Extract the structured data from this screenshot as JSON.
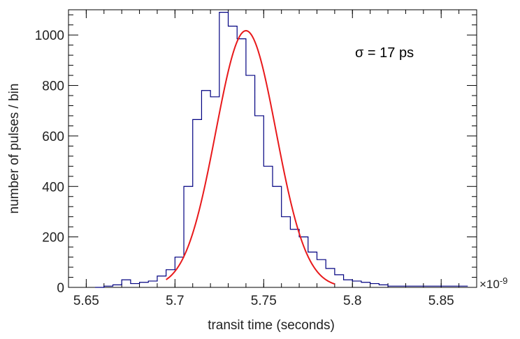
{
  "chart_data": {
    "type": "histogram",
    "title": "",
    "xlabel": "transit time (seconds)",
    "ylabel": "number of pulses / bin",
    "x_multiplier": "×10",
    "x_multiplier_exp": "-9",
    "xlim": [
      5.64,
      5.87
    ],
    "ylim": [
      0,
      1100
    ],
    "x_ticks": [
      "5.65",
      "5.7",
      "5.75",
      "5.8",
      "5.85"
    ],
    "x_tick_values": [
      5.65,
      5.7,
      5.75,
      5.8,
      5.85
    ],
    "y_ticks": [
      "0",
      "200",
      "400",
      "600",
      "800",
      "1000"
    ],
    "y_tick_values": [
      0,
      200,
      400,
      600,
      800,
      1000
    ],
    "annotation": "σ = 17 ps",
    "histogram": {
      "name": "data",
      "color": "#000080",
      "bin_edges": [
        5.655,
        5.66,
        5.665,
        5.67,
        5.675,
        5.68,
        5.685,
        5.69,
        5.695,
        5.7,
        5.705,
        5.71,
        5.715,
        5.72,
        5.725,
        5.73,
        5.735,
        5.74,
        5.745,
        5.75,
        5.755,
        5.76,
        5.765,
        5.77,
        5.775,
        5.78,
        5.785,
        5.79,
        5.795,
        5.8,
        5.805,
        5.81,
        5.815,
        5.82,
        5.825,
        5.83,
        5.835,
        5.84,
        5.845,
        5.85,
        5.855,
        5.86,
        5.865
      ],
      "counts": [
        0,
        5,
        10,
        30,
        15,
        20,
        25,
        45,
        70,
        120,
        400,
        665,
        780,
        755,
        1090,
        1035,
        985,
        840,
        680,
        480,
        400,
        280,
        230,
        200,
        140,
        110,
        75,
        50,
        30,
        25,
        20,
        15,
        10,
        5,
        5,
        5,
        5,
        5,
        5,
        5,
        5,
        5
      ]
    },
    "fit": {
      "name": "gaussian fit",
      "color": "#e8191b",
      "amplitude": 1017,
      "mean": 5.74,
      "sigma": 0.017,
      "x_range": [
        5.695,
        5.79
      ]
    }
  }
}
